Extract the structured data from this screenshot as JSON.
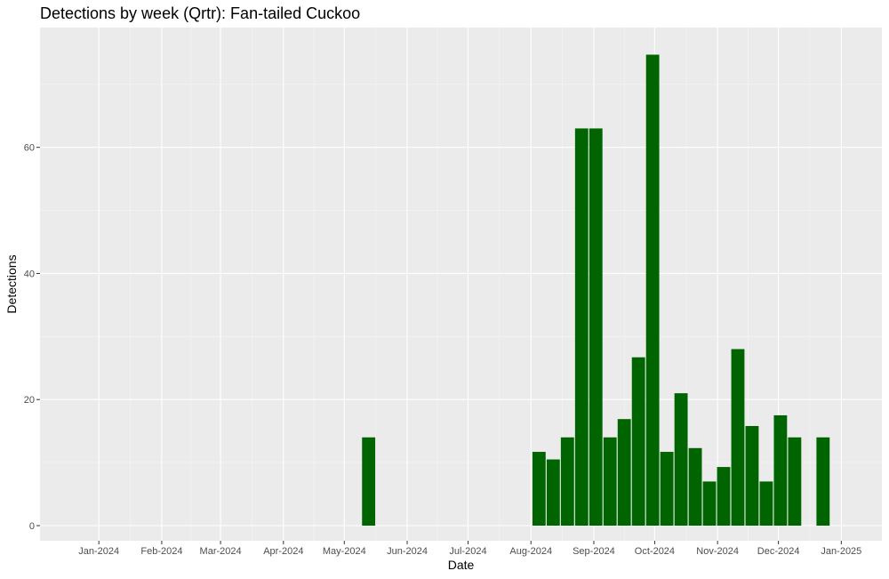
{
  "chart_data": {
    "type": "bar",
    "title": "Detections by week (Qrtr): Fan-tailed Cuckoo",
    "xlabel": "Date",
    "ylabel": "Detections",
    "x_tick_labels": [
      "Jan-2024",
      "Feb-2024",
      "Mar-2024",
      "Apr-2024",
      "May-2024",
      "Jun-2024",
      "Jul-2024",
      "Aug-2024",
      "Sep-2024",
      "Oct-2024",
      "Nov-2024",
      "Dec-2024",
      "Jan-2025"
    ],
    "y_ticks": [
      0,
      20,
      40,
      60
    ],
    "ylim": [
      -2.4,
      79
    ],
    "xlim": [
      "2023-12-03",
      "2025-01-21"
    ],
    "grid": true,
    "series": [
      {
        "x": [
          "2024-05-13",
          "2024-08-05",
          "2024-08-12",
          "2024-08-19",
          "2024-08-26",
          "2024-09-02",
          "2024-09-09",
          "2024-09-16",
          "2024-09-23",
          "2024-09-30",
          "2024-10-07",
          "2024-10-14",
          "2024-10-21",
          "2024-10-28",
          "2024-11-04",
          "2024-11-11",
          "2024-11-18",
          "2024-11-25",
          "2024-12-02",
          "2024-12-09",
          "2024-12-23"
        ],
        "values": [
          14,
          11.7,
          10.5,
          14,
          63,
          63,
          14,
          16.9,
          26.7,
          74.7,
          11.7,
          21,
          12.3,
          7,
          9.3,
          28,
          15.8,
          7,
          17.5,
          14,
          14
        ]
      }
    ],
    "colors": {
      "bar": "#006400",
      "panel": "#ebebeb",
      "grid_major": "#ffffff",
      "grid_minor": "#f5f5f5",
      "tick_text": "#4d4d4d"
    }
  }
}
